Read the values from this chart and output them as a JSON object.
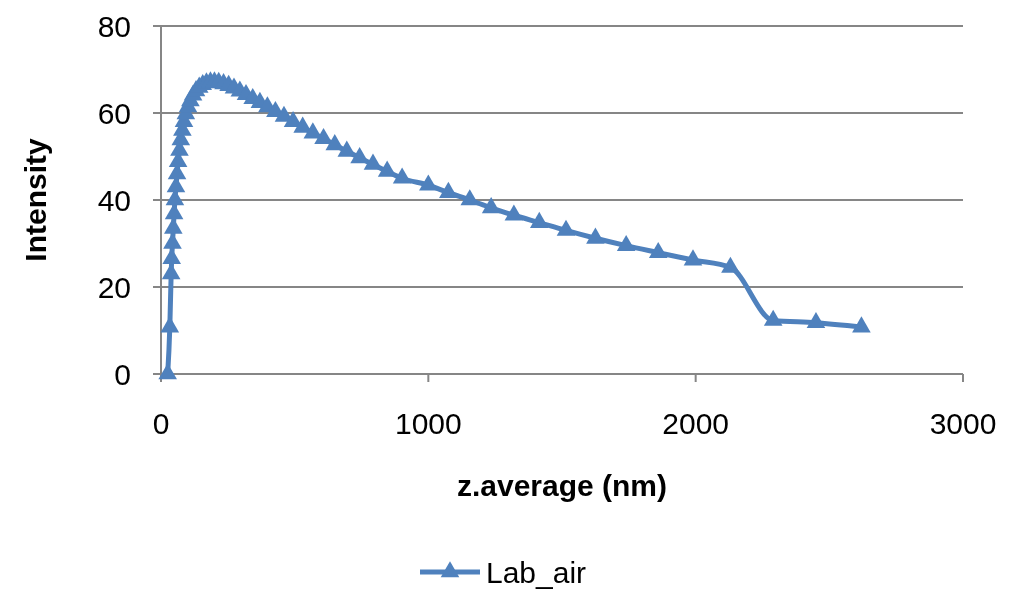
{
  "chart_data": {
    "type": "line",
    "xlabel": "z.average (nm)",
    "ylabel": "Intensity",
    "xlim": [
      0,
      3000
    ],
    "xticks": [
      0,
      1000,
      2000,
      3000
    ],
    "ylim": [
      0,
      80
    ],
    "yticks": [
      0,
      20,
      40,
      60,
      80
    ],
    "grid": "y",
    "legend": "bottom",
    "marker": "triangle",
    "line_style": "solid",
    "series": [
      {
        "name": "Lab_air",
        "color": "#4f81bd",
        "x": [
          25,
          33,
          38,
          40,
          43,
          46,
          49,
          52,
          56,
          60,
          64,
          69,
          74,
          80,
          86,
          93,
          101,
          110,
          120,
          131,
          143,
          156,
          170,
          185,
          200,
          216,
          234,
          253,
          273,
          295,
          318,
          343,
          370,
          398,
          428,
          460,
          494,
          530,
          568,
          608,
          650,
          695,
          743,
          793,
          846,
          902,
          1000,
          1075,
          1155,
          1235,
          1320,
          1415,
          1515,
          1625,
          1740,
          1860,
          1990,
          2130,
          2290,
          2450,
          2620
        ],
        "values": [
          0,
          10.8,
          23,
          26.5,
          30,
          33.5,
          36.8,
          40,
          43,
          46,
          48.8,
          51.4,
          53.8,
          56,
          58,
          59.8,
          61.4,
          62.8,
          64.1,
          65.1,
          65.9,
          66.5,
          66.9,
          67.1,
          67.1,
          67,
          66.7,
          66.3,
          65.7,
          65,
          64.2,
          63.3,
          62.4,
          61.4,
          60.3,
          59.2,
          58,
          56.7,
          55.4,
          54.1,
          52.7,
          51.2,
          49.7,
          48.2,
          46.6,
          45,
          43.4,
          41.7,
          40,
          38.2,
          36.5,
          34.8,
          33,
          31.2,
          29.5,
          27.9,
          26.2,
          24.5,
          12.3,
          11.8,
          10.8
        ]
      }
    ]
  }
}
